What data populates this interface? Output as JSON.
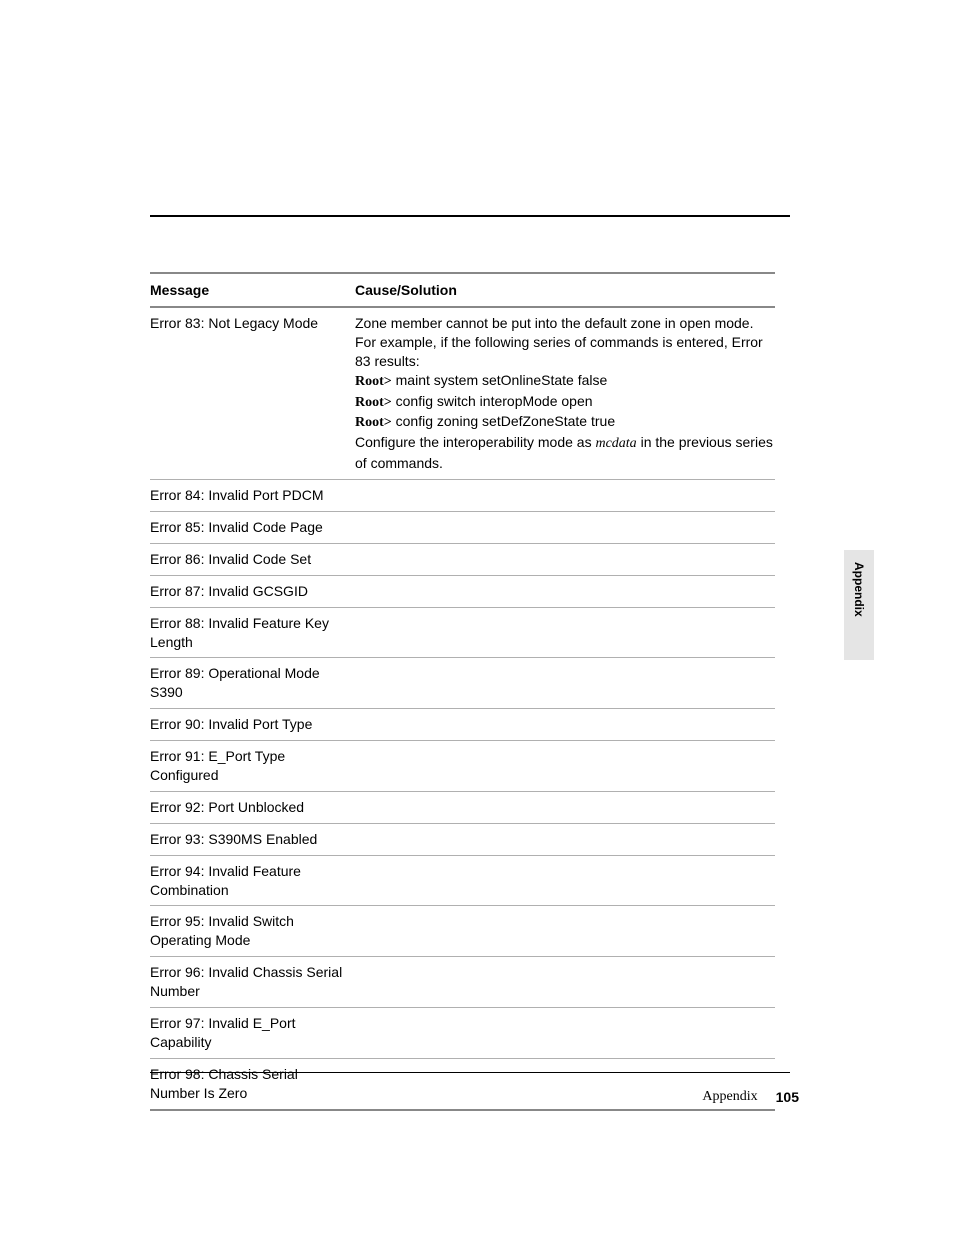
{
  "table": {
    "header": {
      "message": "Message",
      "cause": "Cause/Solution"
    },
    "rows": [
      {
        "message": "Error 83: Not Legacy Mode",
        "cause_lines": [
          {
            "text": "Zone member cannot be put into the default zone in open mode. For example, if the following series of commands is entered, Error 83 results:"
          },
          {
            "prefix": "Root>",
            "text": " maint system setOnlineState false"
          },
          {
            "prefix": "Root>",
            "text": " config switch interopMode open"
          },
          {
            "prefix": "Root>",
            "text": " config zoning setDefZoneState true"
          },
          {
            "text_before": "Configure the interoperability mode as ",
            "italic": "mcdata",
            "text_after": " in the previous series of commands."
          }
        ]
      },
      {
        "message": "Error 84: Invalid Port PDCM",
        "cause_lines": []
      },
      {
        "message": "Error 85: Invalid Code Page",
        "cause_lines": []
      },
      {
        "message": "Error 86: Invalid Code Set",
        "cause_lines": []
      },
      {
        "message": "Error 87: Invalid GCSGID",
        "cause_lines": []
      },
      {
        "message": "Error 88: Invalid Feature Key Length",
        "cause_lines": []
      },
      {
        "message": "Error 89: Operational Mode S390",
        "cause_lines": []
      },
      {
        "message": "Error 90: Invalid Port Type",
        "cause_lines": []
      },
      {
        "message": "Error 91: E_Port Type Configured",
        "cause_lines": []
      },
      {
        "message": "Error 92: Port Unblocked",
        "cause_lines": []
      },
      {
        "message": "Error 93: S390MS Enabled",
        "cause_lines": []
      },
      {
        "message": "Error 94: Invalid Feature Combination",
        "cause_lines": []
      },
      {
        "message": "Error 95: Invalid Switch Operating Mode",
        "cause_lines": []
      },
      {
        "message": "Error 96: Invalid Chassis Serial Number",
        "cause_lines": []
      },
      {
        "message": "Error 97: Invalid E_Port Capability",
        "cause_lines": []
      },
      {
        "message": "Error 98: Chassis Serial Number Is Zero",
        "cause_lines": []
      }
    ]
  },
  "sideTab": "Appendix",
  "footer": {
    "section": "Appendix",
    "page": "105"
  }
}
